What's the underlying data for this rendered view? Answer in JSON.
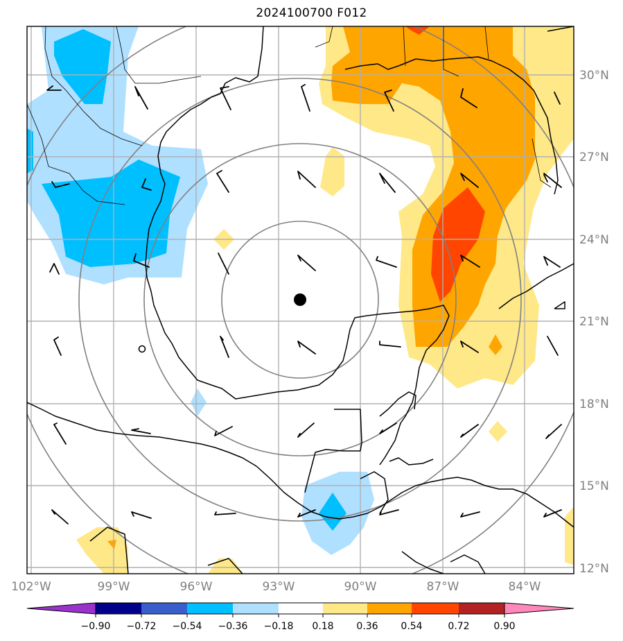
{
  "title": "2024100700 F012",
  "map": {
    "extent": {
      "lon_min": -102,
      "lon_max": -82.5,
      "lat_min": 11.8,
      "lat_max": 31.8
    },
    "lat_labels": [
      "12°N",
      "15°N",
      "18°N",
      "21°N",
      "24°N",
      "27°N",
      "30°N"
    ],
    "lon_labels": [
      "102°W",
      "99°W",
      "96°W",
      "93°W",
      "90°W",
      "87°W",
      "84°W"
    ],
    "storm_center": {
      "lon": -92.3,
      "lat": 21.8
    },
    "range_rings": 4,
    "colors": {
      "gridline": "#b0b0b0",
      "ring": "#808080",
      "coast": "#000000",
      "barb": "#000000"
    }
  },
  "colorbar": {
    "ticks": [
      "−0.90",
      "−0.72",
      "−0.54",
      "−0.36",
      "−0.18",
      "0.18",
      "0.36",
      "0.54",
      "0.72",
      "0.90"
    ],
    "colors": [
      "#9933cc",
      "#00008b",
      "#3a5fcd",
      "#00bfff",
      "#b0e0ff",
      "#ffffff",
      "#ffe888",
      "#ffa500",
      "#ff4500",
      "#b22222",
      "#ff88bb"
    ]
  }
}
